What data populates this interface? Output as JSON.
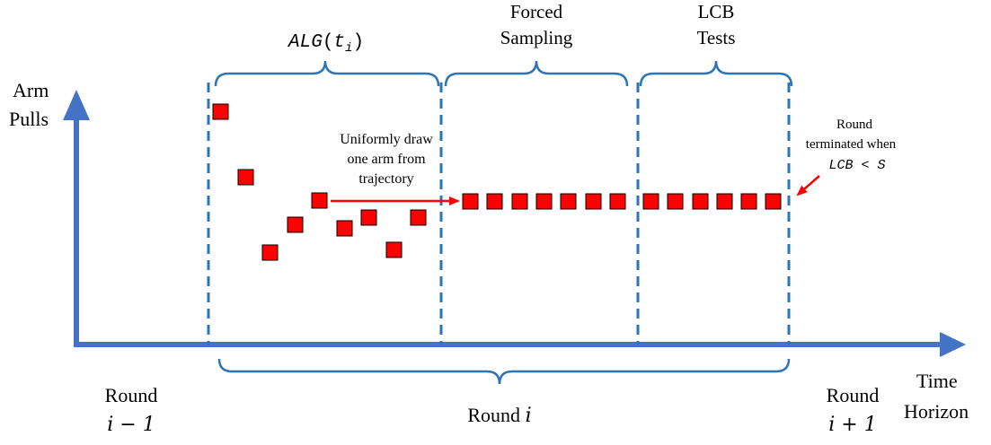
{
  "axes": {
    "y_label_line1": "Arm",
    "y_label_line2": "Pulls",
    "x_label_line1": "Time",
    "x_label_line2": "Horizon",
    "color": "#4472C4"
  },
  "phases": {
    "alg": {
      "text": "ALG",
      "paren_open": "(",
      "var": "t",
      "sub": "i",
      "paren_close": ")"
    },
    "forced_line1": "Forced",
    "forced_line2": "Sampling",
    "lcb_line1": "LCB",
    "lcb_line2": "Tests",
    "bracket_color": "#2E75B6"
  },
  "annotations": {
    "draw_line1": "Uniformly draw",
    "draw_line2": "one arm from",
    "draw_line3": "trajectory",
    "term_line1": "Round",
    "term_line2": "terminated when",
    "term_math": "LCB < S",
    "arrow_color": "#FF0000"
  },
  "rounds": {
    "prev_line1": "Round",
    "prev_line2": "i − 1",
    "cur_word": "Round",
    "cur_var": "i",
    "next_line1": "Round",
    "next_line2": "i + 1"
  },
  "markers": {
    "color": "#FF0000",
    "stroke": "#000000",
    "trajectory_count": 9,
    "forced_count": 7,
    "lcb_count": 6
  }
}
